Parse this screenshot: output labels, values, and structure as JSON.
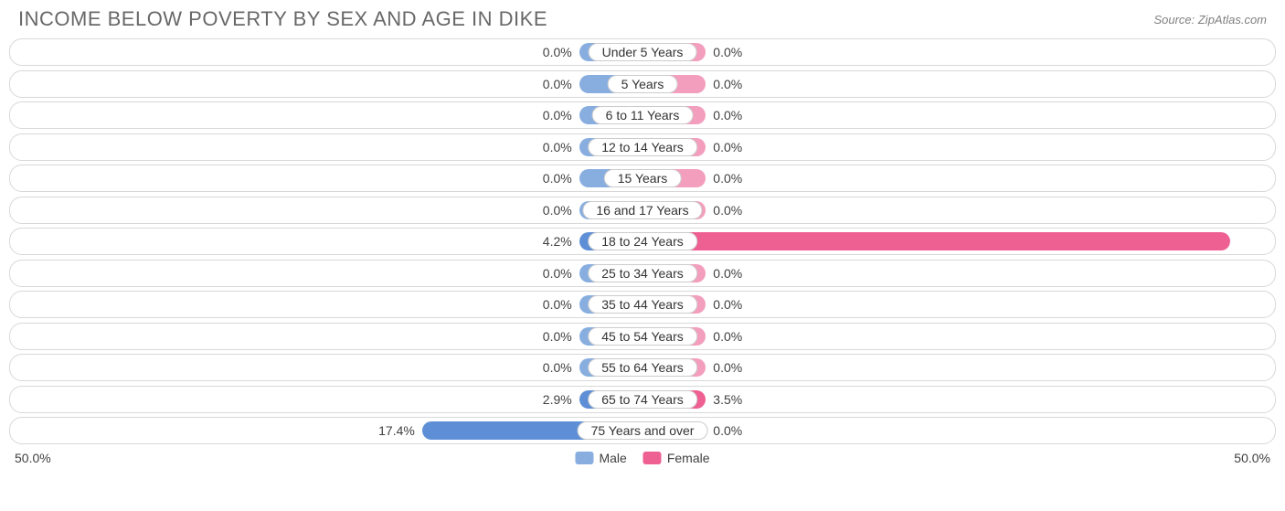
{
  "title": "INCOME BELOW POVERTY BY SEX AND AGE IN DIKE",
  "source": "Source: ZipAtlas.com",
  "chart": {
    "type": "diverging-bar",
    "axis_max": 50.0,
    "axis_label_left": "50.0%",
    "axis_label_right": "50.0%",
    "min_bar_pct": 5.0,
    "row_bg": "#ffffff",
    "row_border": "#d8d8d8",
    "pill_bg": "#ffffff",
    "pill_border": "#cccccc",
    "text_color": "#404040",
    "title_color": "#686868",
    "colors": {
      "male_base": "#88aee0",
      "male_highlight": "#5e8fd6",
      "female_base": "#f39ebd",
      "female_highlight": "#ee5f92"
    },
    "legend": [
      {
        "label": "Male",
        "color": "#88aee0"
      },
      {
        "label": "Female",
        "color": "#ee5f92"
      }
    ],
    "rows": [
      {
        "category": "Under 5 Years",
        "male": 0.0,
        "female": 0.0
      },
      {
        "category": "5 Years",
        "male": 0.0,
        "female": 0.0
      },
      {
        "category": "6 to 11 Years",
        "male": 0.0,
        "female": 0.0
      },
      {
        "category": "12 to 14 Years",
        "male": 0.0,
        "female": 0.0
      },
      {
        "category": "15 Years",
        "male": 0.0,
        "female": 0.0
      },
      {
        "category": "16 and 17 Years",
        "male": 0.0,
        "female": 0.0
      },
      {
        "category": "18 to 24 Years",
        "male": 4.2,
        "female": 46.4
      },
      {
        "category": "25 to 34 Years",
        "male": 0.0,
        "female": 0.0
      },
      {
        "category": "35 to 44 Years",
        "male": 0.0,
        "female": 0.0
      },
      {
        "category": "45 to 54 Years",
        "male": 0.0,
        "female": 0.0
      },
      {
        "category": "55 to 64 Years",
        "male": 0.0,
        "female": 0.0
      },
      {
        "category": "65 to 74 Years",
        "male": 2.9,
        "female": 3.5
      },
      {
        "category": "75 Years and over",
        "male": 17.4,
        "female": 0.0
      }
    ]
  }
}
